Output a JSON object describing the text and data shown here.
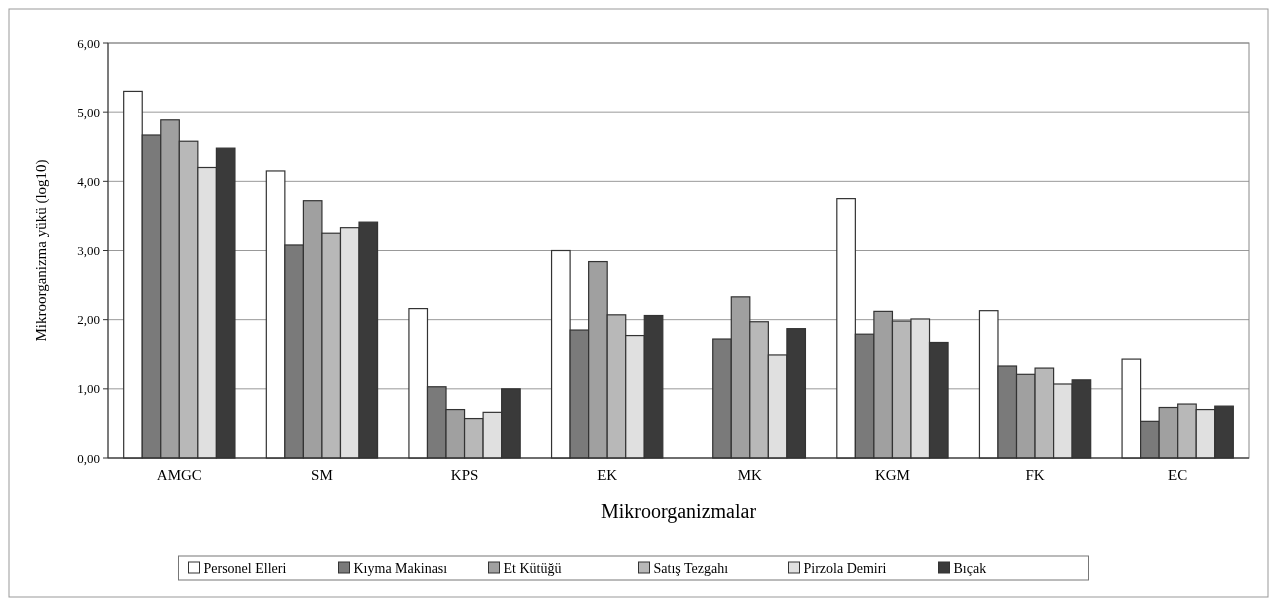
{
  "chart_data": {
    "type": "bar",
    "xlabel": "Mikroorganizmalar",
    "ylabel": "Mikroorganizma yükü (log10)",
    "categories": [
      "AMGC",
      "SM",
      "KPS",
      "EK",
      "MK",
      "KGM",
      "FK",
      "EC"
    ],
    "series": [
      {
        "name": "Personel Elleri",
        "color": "#ffffff",
        "values": [
          5.3,
          4.15,
          2.16,
          3.0,
          null,
          3.75,
          2.13,
          1.43
        ]
      },
      {
        "name": "Kıyma Makinası",
        "color": "#7a7a7a",
        "values": [
          4.67,
          3.08,
          1.03,
          1.85,
          1.72,
          1.79,
          1.33,
          0.53
        ]
      },
      {
        "name": "Et Kütüğü",
        "color": "#a0a0a0",
        "values": [
          4.89,
          3.72,
          0.7,
          2.84,
          2.33,
          2.12,
          1.21,
          0.73
        ]
      },
      {
        "name": "Satış Tezgahı",
        "color": "#b8b8b8",
        "values": [
          4.58,
          3.25,
          0.57,
          2.07,
          1.97,
          1.98,
          1.3,
          0.78
        ]
      },
      {
        "name": "Pirzola Demiri",
        "color": "#e0e0e0",
        "values": [
          4.2,
          3.33,
          0.66,
          1.77,
          1.49,
          2.01,
          1.07,
          0.7
        ]
      },
      {
        "name": "Bıçak",
        "color": "#3a3a3a",
        "values": [
          4.48,
          3.41,
          1.0,
          2.06,
          1.87,
          1.67,
          1.13,
          0.75
        ]
      }
    ],
    "ylim": [
      0,
      6
    ],
    "yticks": [
      {
        "value": 0,
        "label": "0,00"
      },
      {
        "value": 1,
        "label": "1,00"
      },
      {
        "value": 2,
        "label": "2,00"
      },
      {
        "value": 3,
        "label": "3,00"
      },
      {
        "value": 4,
        "label": "4,00"
      },
      {
        "value": 5,
        "label": "5,00"
      },
      {
        "value": 6,
        "label": "6,00"
      }
    ],
    "grid": "y",
    "legend": "bottom"
  }
}
